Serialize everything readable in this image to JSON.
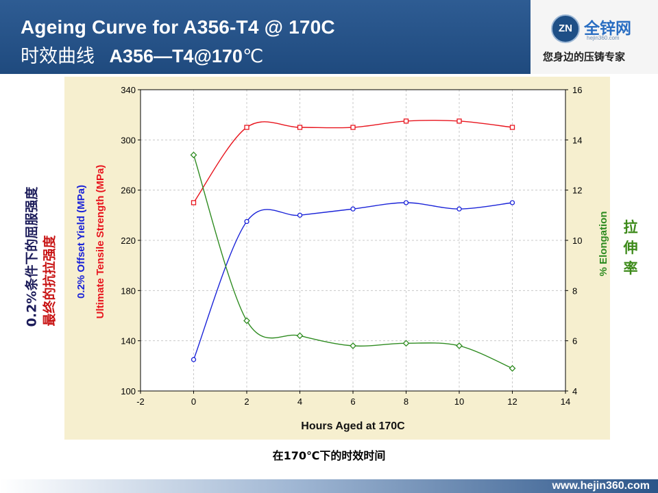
{
  "header": {
    "title_en": "Ageing Curve for A356-T4 @ 170C",
    "title_cn_prefix": "时效曲线",
    "title_cn_bold": "A356—T4@170",
    "title_cn_unit": "℃"
  },
  "logo": {
    "mark": "ZN",
    "name": "全锌网",
    "url": "hejin360.com",
    "slogan": "您身边的压铸专家"
  },
  "side_labels": {
    "left_black": "0.2%条件下的屈服强度",
    "left_red": "最终的抗拉强度",
    "right_green": "拉伸率"
  },
  "caption": "在170℃下的时效时间",
  "footer": {
    "url": "www.hejin360.com"
  },
  "colors": {
    "header_bg": "#1f4a7e",
    "chart_bg": "#f6efcf",
    "uts": "#e8141d",
    "yield": "#1a23d8",
    "elongation": "#2e8b20"
  },
  "chart_data": {
    "type": "line",
    "title": "",
    "xlabel": "Hours Aged at 170C",
    "ylabel_left_1": "Ultimate Tensile Strength (MPa)",
    "ylabel_left_2": "0.2% Offset Yield (MPa)",
    "ylabel_right": "% Elongation",
    "xlim": [
      -2,
      14
    ],
    "ylim": [
      100,
      340
    ],
    "ylim_right": [
      4,
      16
    ],
    "xticks": [
      -2,
      0,
      2,
      4,
      6,
      8,
      10,
      12,
      14
    ],
    "yticks": [
      100,
      140,
      180,
      220,
      260,
      300,
      340
    ],
    "yticks_right": [
      4,
      6,
      8,
      10,
      12,
      14,
      16
    ],
    "grid": true,
    "x": [
      0,
      2,
      4,
      6,
      8,
      10,
      12
    ],
    "series": [
      {
        "name": "Ultimate Tensile Strength (MPa)",
        "axis": "left",
        "marker": "square",
        "color": "#e8141d",
        "values": [
          250,
          310,
          310,
          310,
          315,
          315,
          310
        ]
      },
      {
        "name": "0.2% Offset Yield (MPa)",
        "axis": "left",
        "marker": "circle",
        "color": "#1a23d8",
        "values": [
          125,
          235,
          240,
          245,
          250,
          245,
          250
        ]
      },
      {
        "name": "% Elongation",
        "axis": "right",
        "marker": "diamond",
        "color": "#2e8b20",
        "values": [
          13.4,
          6.8,
          6.2,
          5.8,
          5.9,
          5.8,
          4.9
        ]
      }
    ]
  }
}
